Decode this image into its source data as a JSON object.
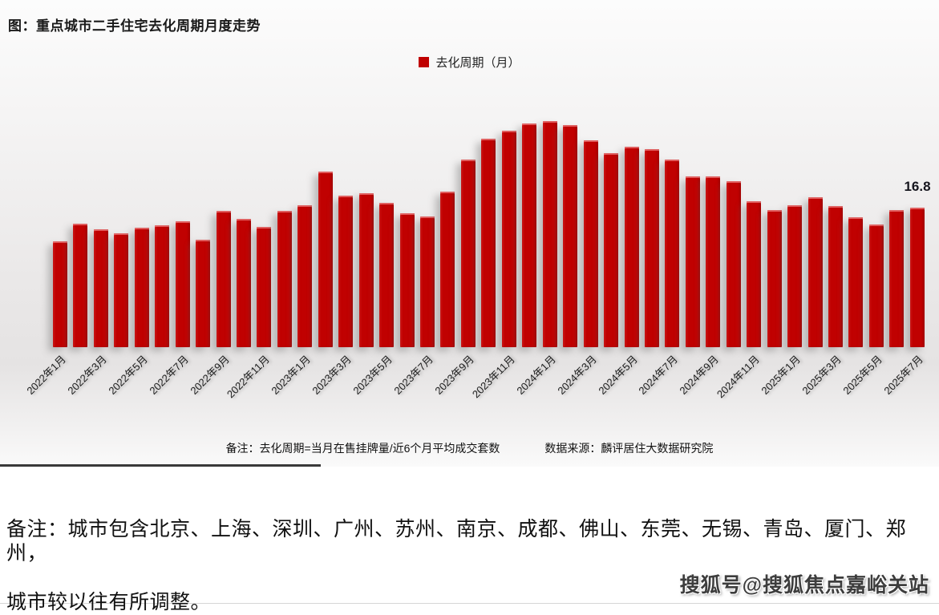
{
  "figure": {
    "title": "图：重点城市二手住宅去化周期月度走势",
    "note": "备注：去化周期=当月在售挂牌量/近6个月平均成交套数",
    "source": "数据来源：麟评居住大数据研究院",
    "last_value_label": "16.8"
  },
  "footnote": {
    "line1": "备注：城市包含北京、上海、深圳、广州、苏州、南京、成都、佛山、东莞、无锡、青岛、厦门、郑州，",
    "line2": "城市较以往有所调整。"
  },
  "watermark": {
    "text": "搜狐号@搜狐焦点嘉峪关站"
  },
  "colors": {
    "bar": "#c00101",
    "legend_swatch": "#c00101",
    "divider": "#3a3a3a",
    "title_text": "#1a1a1a",
    "value_label_text": "#15151d"
  },
  "chart_data": {
    "type": "bar",
    "title": "重点城市二手住宅去化周期月度走势",
    "xlabel": "",
    "ylabel": "去化周期（月）",
    "unit": "月",
    "ylim": [
      0,
      30
    ],
    "grid": false,
    "legend_position": "top-center",
    "tick_every": 2,
    "categories": [
      "2022年1月",
      "2022年2月",
      "2022年3月",
      "2022年4月",
      "2022年5月",
      "2022年6月",
      "2022年7月",
      "2022年8月",
      "2022年9月",
      "2022年10月",
      "2022年11月",
      "2022年12月",
      "2023年1月",
      "2023年2月",
      "2023年3月",
      "2023年4月",
      "2023年5月",
      "2023年6月",
      "2023年7月",
      "2023年8月",
      "2023年9月",
      "2023年10月",
      "2023年11月",
      "2023年12月",
      "2024年1月",
      "2024年2月",
      "2024年3月",
      "2024年4月",
      "2024年5月",
      "2024年6月",
      "2024年7月",
      "2024年8月",
      "2024年9月",
      "2024年10月",
      "2024年11月",
      "2024年12月",
      "2025年1月",
      "2025年2月",
      "2025年3月",
      "2025年4月",
      "2025年5月",
      "2025年6月",
      "2025年7月"
    ],
    "series": [
      {
        "name": "去化周期（月）",
        "values": [
          12.8,
          14.9,
          14.2,
          13.7,
          14.4,
          14.7,
          15.2,
          13.0,
          16.5,
          15.5,
          14.5,
          16.5,
          17.1,
          21.2,
          18.3,
          18.6,
          17.4,
          16.2,
          15.8,
          18.8,
          22.7,
          25.2,
          26.1,
          27.0,
          27.3,
          26.8,
          25.0,
          23.4,
          24.2,
          23.9,
          22.7,
          20.6,
          20.6,
          20.0,
          17.6,
          16.6,
          17.1,
          18.1,
          17.0,
          15.7,
          14.8,
          16.6,
          16.8
        ]
      }
    ],
    "data_labels": [
      {
        "category": "2025年7月",
        "value": 16.8,
        "text": "16.8"
      }
    ]
  }
}
